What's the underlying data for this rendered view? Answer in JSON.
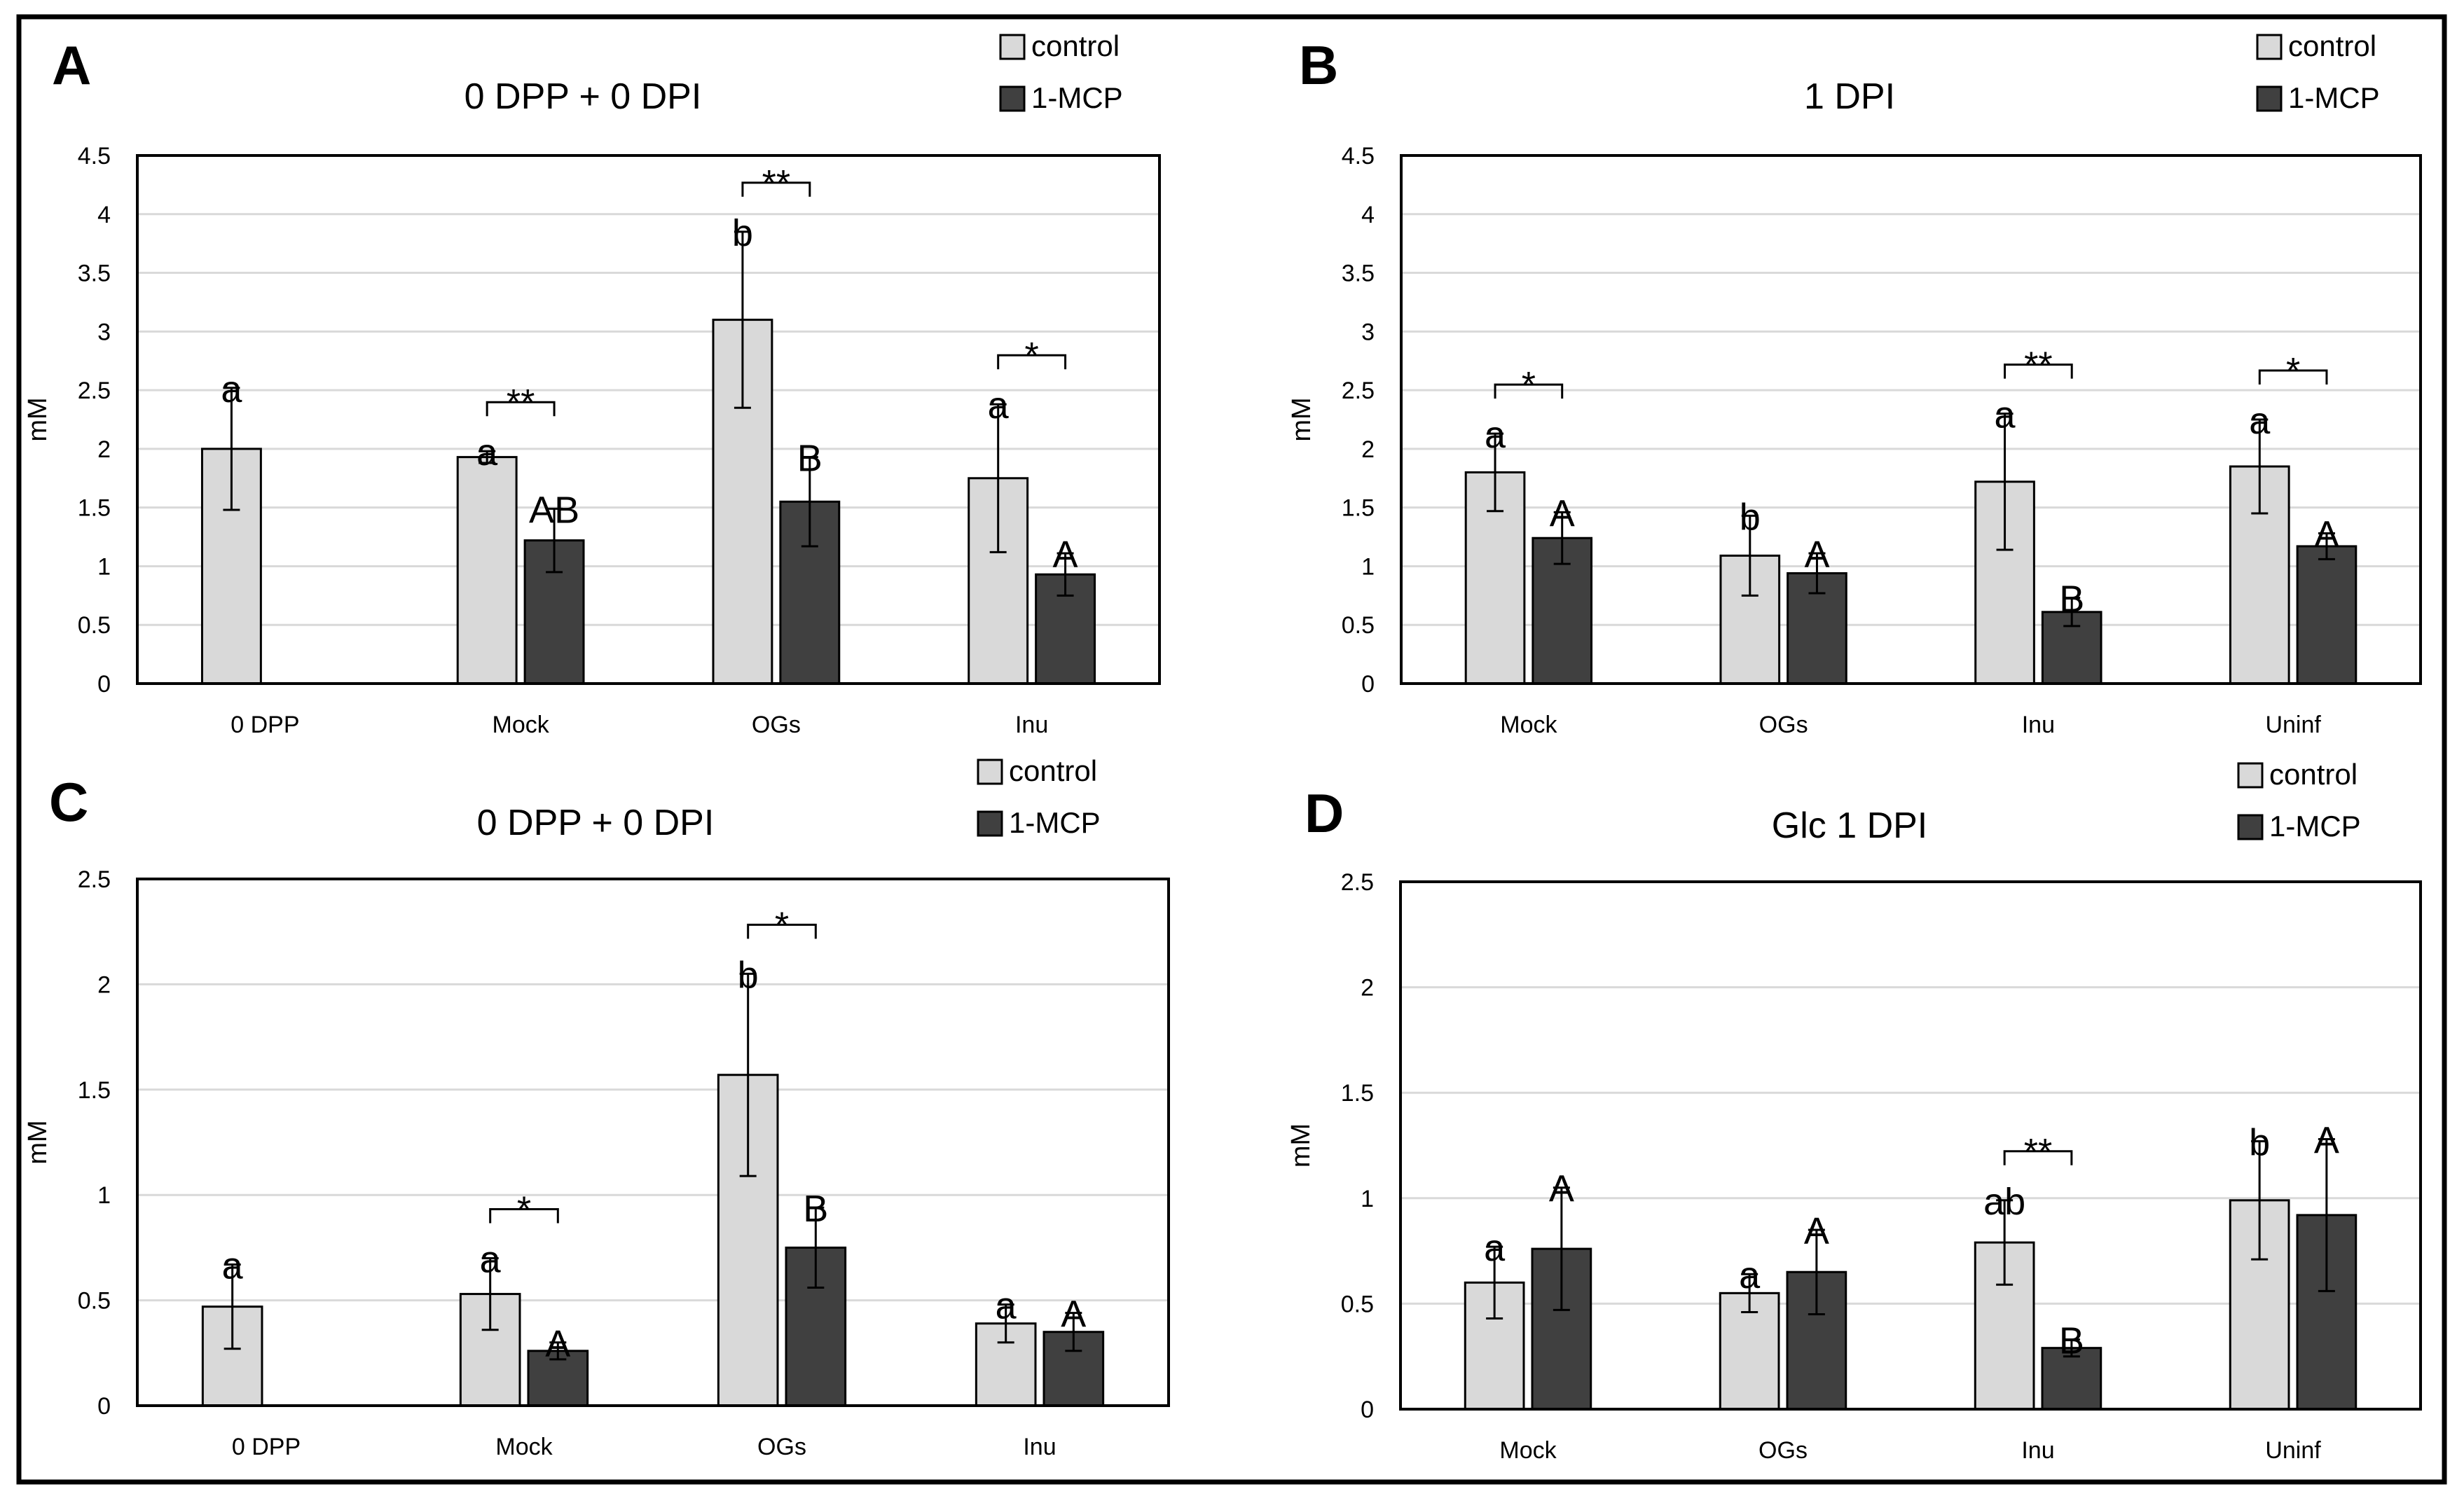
{
  "colors": {
    "control": "#d9d9d9",
    "mcp": "#404040",
    "grid": "#d9d9d9",
    "axis": "#000000",
    "frame": "#000000"
  },
  "legend_labels": [
    "control",
    "1-MCP"
  ],
  "chart_data": [
    {
      "panel": "A",
      "type": "bar",
      "title": "0 DPP + 0 DPI",
      "ylabel": "mM",
      "ylim": [
        0,
        4.5
      ],
      "yticks": [
        "0",
        "0.5",
        "1",
        "1.5",
        "2",
        "2.5",
        "3",
        "3.5",
        "4",
        "4.5"
      ],
      "tick_values": [
        0,
        0.5,
        1,
        1.5,
        2,
        2.5,
        3,
        3.5,
        4,
        4.5
      ],
      "categories": [
        "0 DPP",
        "Mock",
        "OGs",
        "Inu"
      ],
      "grid": true,
      "legend": "top-right",
      "series": [
        {
          "name": "control",
          "values": [
            2.0,
            1.93,
            3.1,
            1.75
          ],
          "errors": [
            0.52,
            0.05,
            0.75,
            0.63
          ],
          "letters": [
            "a",
            "a",
            "b",
            "a"
          ]
        },
        {
          "name": "1-MCP",
          "values": [
            null,
            1.22,
            1.55,
            0.93
          ],
          "errors": [
            null,
            0.27,
            0.38,
            0.18
          ],
          "letters": [
            "",
            "AB",
            "B",
            "A"
          ]
        }
      ],
      "significance": [
        "",
        "**",
        "**",
        "*"
      ]
    },
    {
      "panel": "B",
      "type": "bar",
      "title": "1 DPI",
      "ylabel": "mM",
      "ylim": [
        0,
        4.5
      ],
      "yticks": [
        "0",
        "0.5",
        "1",
        "1.5",
        "2",
        "2.5",
        "3",
        "3.5",
        "4",
        "4.5"
      ],
      "tick_values": [
        0,
        0.5,
        1,
        1.5,
        2,
        2.5,
        3,
        3.5,
        4,
        4.5
      ],
      "categories": [
        "Mock",
        "OGs",
        "Inu",
        "Uninf"
      ],
      "grid": true,
      "legend": "top-right",
      "series": [
        {
          "name": "control",
          "values": [
            1.8,
            1.09,
            1.72,
            1.85
          ],
          "errors": [
            0.33,
            0.34,
            0.58,
            0.4
          ],
          "letters": [
            "a",
            "b",
            "a",
            "a"
          ]
        },
        {
          "name": "1-MCP",
          "values": [
            1.24,
            0.94,
            0.61,
            1.17
          ],
          "errors": [
            0.22,
            0.17,
            0.12,
            0.11
          ],
          "letters": [
            "A",
            "A",
            "B",
            "A"
          ]
        }
      ],
      "significance": [
        "*",
        "",
        "**",
        "*"
      ]
    },
    {
      "panel": "C",
      "type": "bar",
      "title": "0 DPP + 0 DPI",
      "ylabel": "mM",
      "ylim": [
        0,
        2.5
      ],
      "yticks": [
        "0",
        "0.5",
        "1",
        "1.5",
        "2",
        "2.5"
      ],
      "tick_values": [
        0,
        0.5,
        1,
        1.5,
        2,
        2.5
      ],
      "categories": [
        "0 DPP",
        "Mock",
        "OGs",
        "Inu"
      ],
      "grid": true,
      "legend": "top-right",
      "series": [
        {
          "name": "control",
          "values": [
            0.47,
            0.53,
            1.57,
            0.39
          ],
          "errors": [
            0.2,
            0.17,
            0.48,
            0.09
          ],
          "letters": [
            "a",
            "a",
            "b",
            "a"
          ]
        },
        {
          "name": "1-MCP",
          "values": [
            null,
            0.26,
            0.75,
            0.35
          ],
          "errors": [
            null,
            0.04,
            0.19,
            0.09
          ],
          "letters": [
            "",
            "A",
            "B",
            "A"
          ]
        }
      ],
      "significance": [
        "",
        "*",
        "*",
        ""
      ]
    },
    {
      "panel": "D",
      "type": "bar",
      "title": "Glc 1 DPI",
      "ylabel": "mM",
      "ylim": [
        0,
        2.5
      ],
      "yticks": [
        "0",
        "0.5",
        "1",
        "1.5",
        "2",
        "2.5"
      ],
      "tick_values": [
        0,
        0.5,
        1,
        1.5,
        2,
        2.5
      ],
      "categories": [
        "Mock",
        "OGs",
        "Inu",
        "Uninf"
      ],
      "grid": true,
      "legend": "top-right",
      "series": [
        {
          "name": "control",
          "values": [
            0.6,
            0.55,
            0.79,
            0.99
          ],
          "errors": [
            0.17,
            0.09,
            0.2,
            0.28
          ],
          "letters": [
            "a",
            "a",
            "ab",
            "b"
          ]
        },
        {
          "name": "1-MCP",
          "values": [
            0.76,
            0.65,
            0.29,
            0.92
          ],
          "errors": [
            0.29,
            0.2,
            0.04,
            0.36
          ],
          "letters": [
            "A",
            "A",
            "B",
            "A"
          ]
        }
      ],
      "significance": [
        "",
        "",
        "**",
        ""
      ]
    }
  ]
}
